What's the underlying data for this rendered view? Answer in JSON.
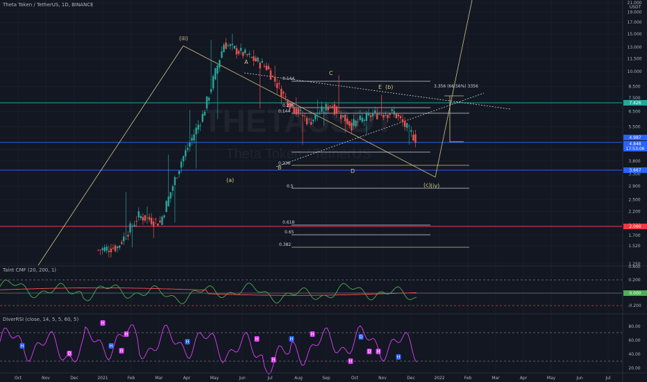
{
  "header": {
    "title": "Theta Token / TetherUS, 1D, BINANCE"
  },
  "watermark": {
    "line1": "THETAUSDT",
    "line2": "Theta Token / TetherUS"
  },
  "price_axis": {
    "unit": "USDT",
    "ticks": [
      "21.000",
      "19.000",
      "17.000",
      "15.000",
      "13.000",
      "11.500",
      "10.000",
      "8.500",
      "7.500",
      "6.500",
      "5.500",
      "4.900",
      "4.300",
      "3.800",
      "3.300",
      "2.900",
      "2.500",
      "2.200",
      "1.900",
      "1.700",
      "1.520",
      "1.250"
    ]
  },
  "price_badges": [
    {
      "text": "7.426",
      "color": "#26a69a"
    },
    {
      "text": "4.987",
      "color": "#2962ff"
    },
    {
      "text": "4.848",
      "color": "#2962ff"
    },
    {
      "text": "17:53:06",
      "color": "#2962ff"
    },
    {
      "text": "3.667",
      "color": "#2962ff"
    },
    {
      "text": "2.060",
      "color": "#f23645"
    }
  ],
  "time_axis": {
    "ticks": [
      "Oct",
      "Nov",
      "Dec",
      "2021",
      "Feb",
      "Mar",
      "Apr",
      "May",
      "Jun",
      "Jul",
      "Aug",
      "Sep",
      "Oct",
      "Nov",
      "Dec",
      "2022",
      "Feb",
      "Mar",
      "Apr",
      "May",
      "Jun",
      "Jul"
    ]
  },
  "wave_labels": [
    "(iii)",
    "A",
    "C",
    "E",
    "(b)",
    "(a)",
    "B",
    "D",
    "(c)",
    "(iv)"
  ],
  "fib_labels": [
    "0.144",
    "0.236",
    "0.144",
    "0.236",
    "0.5",
    "0.618",
    "0.65",
    "0.382",
    "3.356 (66.56%) 3356"
  ],
  "cmf_panel": {
    "title": "Taint CMF (20, 200, 1)",
    "ticks": [
      "0.400",
      "0.200",
      "0.000",
      "-0.200"
    ],
    "badge": "0.000"
  },
  "rsi_panel": {
    "title": "DiverRSI (close, 14, 5, 5, 60, 5)",
    "ticks": [
      "80.00",
      "60.00",
      "40.00",
      "20.00"
    ],
    "div_labels": [
      "H",
      "D",
      "H",
      "H",
      "H",
      "H",
      "H",
      "H",
      "H",
      "H",
      "H",
      "H",
      "D",
      "D",
      "H",
      "H"
    ]
  },
  "colors": {
    "background": "#131722",
    "up": "#26a69a",
    "down": "#ef5350",
    "grid": "#1e2230",
    "wave_line": "#d1c78a",
    "hline_teal": "#26a69a",
    "hline_blue": "#2962ff",
    "hline_red": "#f23645",
    "cmf_line": "#4caf50",
    "cmf_ma": "#ff5252",
    "rsi_line": "#e040fb"
  },
  "chart_data": {
    "type": "candlestick",
    "title": "Theta Token / TetherUS, 1D, BINANCE",
    "ylabel": "USDT",
    "y_scale": "log",
    "ylim": [
      1.25,
      21.0
    ],
    "x": [
      "Oct",
      "Nov",
      "Dec",
      "2021",
      "Feb",
      "Mar",
      "Apr",
      "May",
      "Jun",
      "Jul",
      "Aug",
      "Sep",
      "Oct",
      "Nov",
      "Dec"
    ],
    "series": [
      {
        "values": [
          {
            "open": 1.45,
            "high": 1.55,
            "low": 1.3,
            "close": 1.5
          },
          {
            "open": 1.5,
            "high": 2.8,
            "low": 1.45,
            "close": 2.1
          },
          {
            "open": 2.1,
            "high": 2.4,
            "low": 1.6,
            "close": 1.95
          },
          {
            "open": 1.95,
            "high": 4.2,
            "low": 1.9,
            "close": 3.8
          },
          {
            "open": 3.8,
            "high": 6.8,
            "low": 3.4,
            "close": 6.2
          },
          {
            "open": 6.2,
            "high": 14.5,
            "low": 5.8,
            "close": 13.5
          },
          {
            "open": 13.5,
            "high": 15.5,
            "low": 11.5,
            "close": 12.0
          },
          {
            "open": 12.0,
            "high": 13.0,
            "low": 6.5,
            "close": 10.5
          },
          {
            "open": 10.5,
            "high": 11.0,
            "low": 6.8,
            "close": 7.2
          },
          {
            "open": 7.2,
            "high": 7.8,
            "low": 4.4,
            "close": 5.8
          },
          {
            "open": 5.8,
            "high": 7.6,
            "low": 5.4,
            "close": 7.0
          },
          {
            "open": 7.0,
            "high": 9.9,
            "low": 5.0,
            "close": 5.6
          },
          {
            "open": 5.6,
            "high": 6.8,
            "low": 4.9,
            "close": 6.3
          },
          {
            "open": 6.3,
            "high": 8.0,
            "low": 5.6,
            "close": 6.4
          },
          {
            "open": 6.4,
            "high": 6.5,
            "low": 4.4,
            "close": 4.85
          }
        ]
      }
    ],
    "horizontal_levels": [
      7.426,
      4.987,
      3.667,
      2.06
    ],
    "cmf": {
      "range": [
        -0.2,
        0.4
      ],
      "current": 0.0
    },
    "rsi": {
      "range": [
        20,
        80
      ],
      "levels": [
        30,
        70
      ]
    },
    "grid": true
  }
}
